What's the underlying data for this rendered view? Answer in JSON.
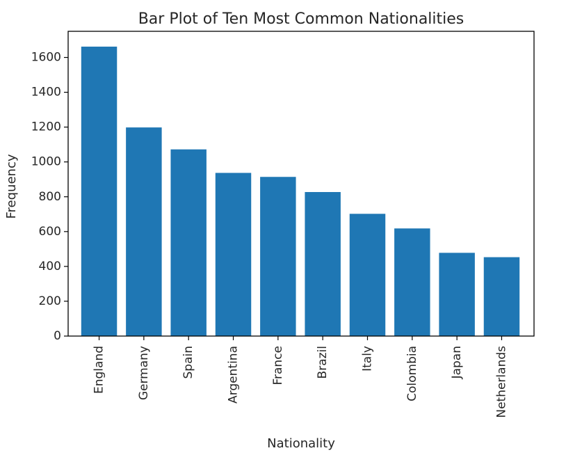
{
  "chart_data": {
    "type": "bar",
    "title": "Bar Plot of Ten Most Common Nationalities",
    "xlabel": "Nationality",
    "ylabel": "Frequency",
    "categories": [
      "England",
      "Germany",
      "Spain",
      "Argentina",
      "France",
      "Brazil",
      "Italy",
      "Colombia",
      "Japan",
      "Netherlands"
    ],
    "values": [
      1662,
      1198,
      1072,
      937,
      914,
      827,
      702,
      618,
      478,
      453
    ],
    "ylim": [
      0,
      1750
    ],
    "yticks": [
      0,
      200,
      400,
      600,
      800,
      1000,
      1200,
      1400,
      1600
    ],
    "grid": false,
    "legend": "none",
    "bar_color": "#1f77b4"
  }
}
